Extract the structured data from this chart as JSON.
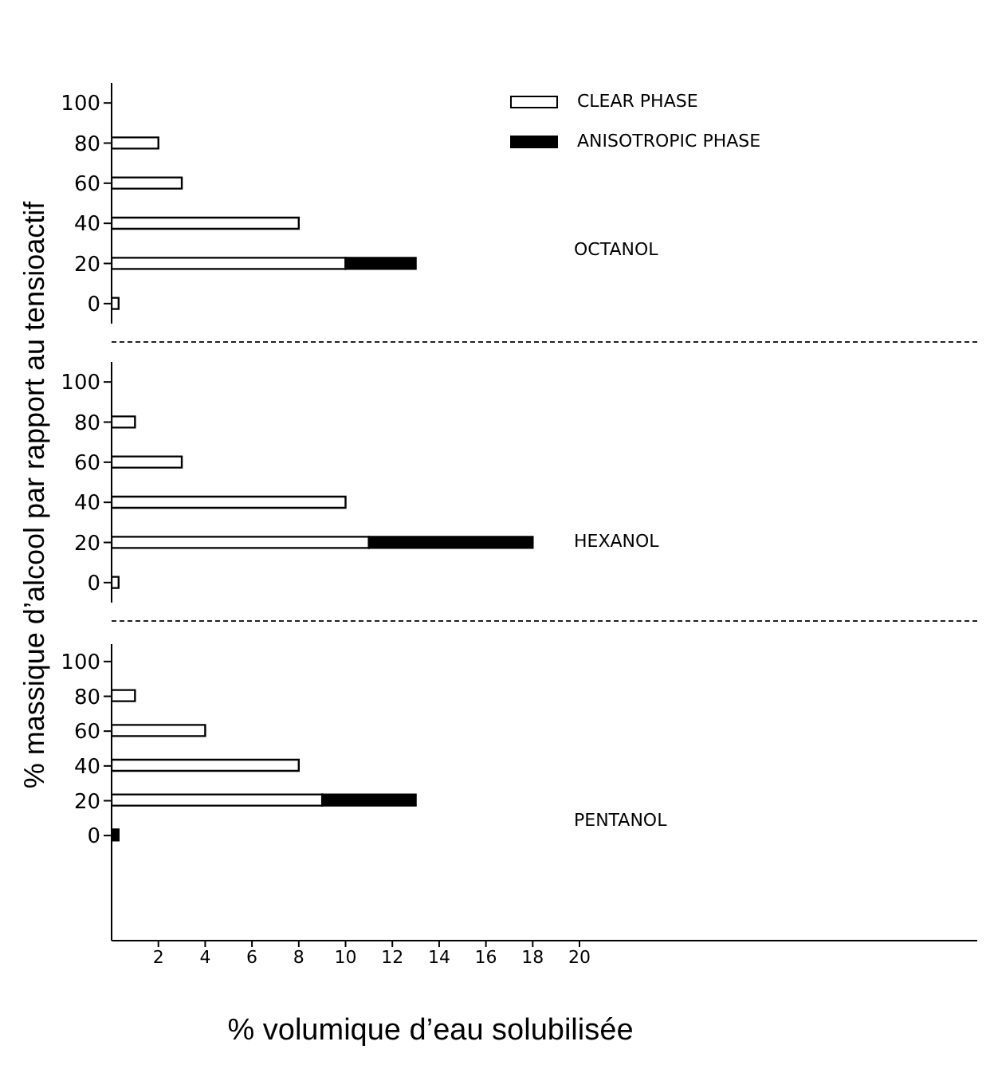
{
  "chart_data": [
    {
      "type": "bar",
      "orientation": "horizontal",
      "stacked": true,
      "categories": [
        "100",
        "80",
        "60",
        "40",
        "20",
        "0"
      ],
      "series": [
        {
          "name": "CLEAR PHASE",
          "color": "#ffffff",
          "values": [
            null,
            2,
            3,
            8,
            10,
            0.3
          ]
        },
        {
          "name": "ANISOTROPIC PHASE",
          "color": "#000000",
          "values": [
            null,
            null,
            null,
            null,
            3,
            null
          ]
        }
      ],
      "xlim": [
        0,
        37
      ],
      "xticks": [
        2,
        4,
        6,
        8,
        10,
        12,
        14,
        16,
        18,
        20
      ],
      "tick_labels": "y",
      "legend": "top right",
      "annotations": [
        "OCTANOL"
      ]
    },
    {
      "type": "bar",
      "orientation": "horizontal",
      "stacked": true,
      "categories": [
        "100",
        "80",
        "60",
        "40",
        "20",
        "0"
      ],
      "series": [
        {
          "color": "#ffffff",
          "values": [
            null,
            1,
            3,
            10,
            11,
            0.3
          ]
        },
        {
          "color": "#000000",
          "values": [
            null,
            null,
            null,
            null,
            7,
            null
          ]
        }
      ],
      "xlim": [
        0,
        37
      ],
      "xticks": [
        2,
        4,
        6,
        8,
        10,
        12,
        14,
        16,
        18,
        20
      ],
      "tick_labels": "y",
      "ylabel": "% massique d’alcool par rapport au tensioactif",
      "annotations": [
        "HEXANOL"
      ]
    },
    {
      "type": "bar",
      "orientation": "horizontal",
      "stacked": true,
      "categories": [
        "100",
        "80",
        "60",
        "40",
        "20",
        "0"
      ],
      "series": [
        {
          "color": "#ffffff",
          "values": [
            null,
            1,
            4,
            8,
            9,
            null
          ]
        },
        {
          "color": "#000000",
          "values": [
            null,
            null,
            null,
            null,
            4,
            0.3
          ]
        }
      ],
      "xlim": [
        0,
        37
      ],
      "xticks": [
        2,
        4,
        6,
        8,
        10,
        12,
        14,
        16,
        18,
        20
      ],
      "xlabel": "% volumique d’eau solubilisée",
      "annotations": [
        "PENTANOL"
      ]
    }
  ]
}
